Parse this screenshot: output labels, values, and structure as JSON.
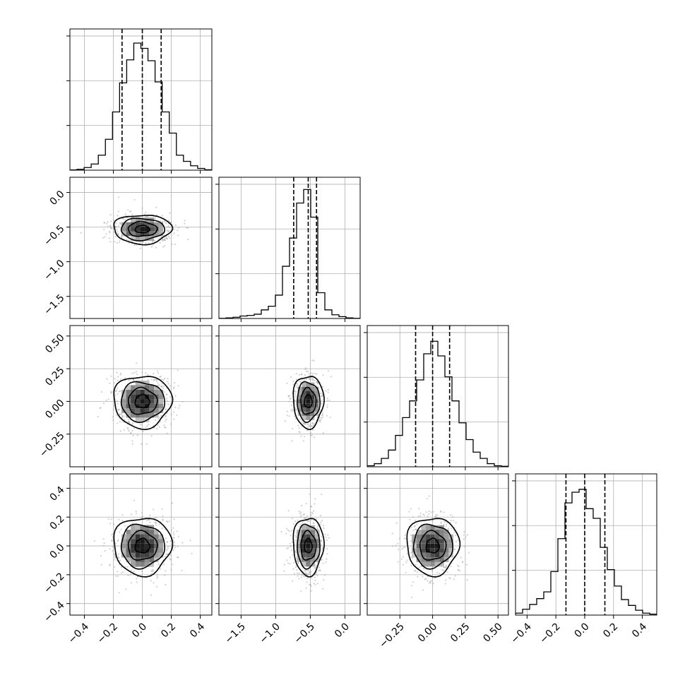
{
  "chart_data": {
    "type": "corner",
    "ticks": {
      "p0": [
        "−0.4",
        "−0.2",
        "0.0",
        "0.2",
        "0.4"
      ],
      "p1": [
        "−1.5",
        "−1.0",
        "−0.5",
        "0.0"
      ],
      "p2": [
        "−0.25",
        "0.00",
        "0.25",
        "0.50"
      ],
      "p3": [
        "−0.4",
        "−0.2",
        "0.0",
        "0.2",
        "0.4"
      ]
    },
    "parameters": [
      {
        "range": [
          -0.5,
          0.48
        ],
        "tick_values": [
          -0.4,
          -0.2,
          0.0,
          0.2,
          0.4
        ],
        "quantiles": [
          -0.14,
          0.0,
          0.13
        ],
        "hist_y": [
          0.3,
          1,
          3,
          7,
          17,
          35,
          66,
          99,
          125,
          144,
          138,
          124,
          100,
          66,
          42,
          17,
          10,
          5,
          2,
          0.5
        ],
        "hist_ymax": 160
      },
      {
        "range": [
          -1.82,
          0.22
        ],
        "tick_values": [
          -1.5,
          -1.0,
          -0.5,
          0.0
        ],
        "quantiles": [
          -0.74,
          -0.53,
          -0.41
        ],
        "hist_y": [
          0.3,
          1,
          2,
          4,
          5,
          7,
          14,
          20,
          38,
          85,
          131,
          188,
          210,
          165,
          42,
          14,
          6,
          3,
          1,
          0.3
        ],
        "hist_ymax": 230
      },
      {
        "range": [
          -0.5,
          0.58
        ],
        "tick_values": [
          -0.25,
          0.0,
          0.25,
          0.5
        ],
        "quantiles": [
          -0.13,
          0.0,
          0.13
        ],
        "hist_y": [
          1,
          3,
          8,
          16,
          30,
          47,
          63,
          83,
          108,
          120,
          106,
          86,
          63,
          42,
          26,
          14,
          8,
          3,
          1,
          0.5
        ],
        "hist_ymax": 135
      },
      {
        "range": [
          -0.48,
          0.5
        ],
        "tick_values": [
          -0.4,
          -0.2,
          0.0,
          0.2,
          0.4
        ],
        "quantiles": [
          -0.13,
          0.0,
          0.14
        ],
        "hist_y": [
          2,
          6,
          11,
          17,
          24,
          45,
          79,
          116,
          127,
          130,
          110,
          100,
          70,
          47,
          30,
          16,
          10,
          5,
          2,
          1
        ],
        "hist_ymax": 146
      }
    ],
    "pairs": [
      {
        "x": 0,
        "y": 1,
        "mean": [
          0.0,
          -0.53
        ],
        "sd": [
          0.1,
          0.105
        ]
      },
      {
        "x": 0,
        "y": 2,
        "mean": [
          0.0,
          0.0
        ],
        "sd": [
          0.1,
          0.1
        ]
      },
      {
        "x": 1,
        "y": 2,
        "mean": [
          -0.53,
          0.0
        ],
        "sd": [
          0.11,
          0.1
        ]
      },
      {
        "x": 0,
        "y": 3,
        "mean": [
          0.0,
          0.0
        ],
        "sd": [
          0.1,
          0.1
        ]
      },
      {
        "x": 1,
        "y": 3,
        "mean": [
          -0.53,
          0.0
        ],
        "sd": [
          0.11,
          0.1
        ]
      },
      {
        "x": 2,
        "y": 3,
        "mean": [
          0.0,
          0.0
        ],
        "sd": [
          0.1,
          0.1
        ]
      }
    ],
    "contour_levels_sigma": [
      0.5,
      1.0,
      1.5,
      2.0
    ],
    "grid": true,
    "colors": {
      "hist": "#000000",
      "points": "#9a9a9a",
      "grid": "#b0b0b0"
    }
  }
}
